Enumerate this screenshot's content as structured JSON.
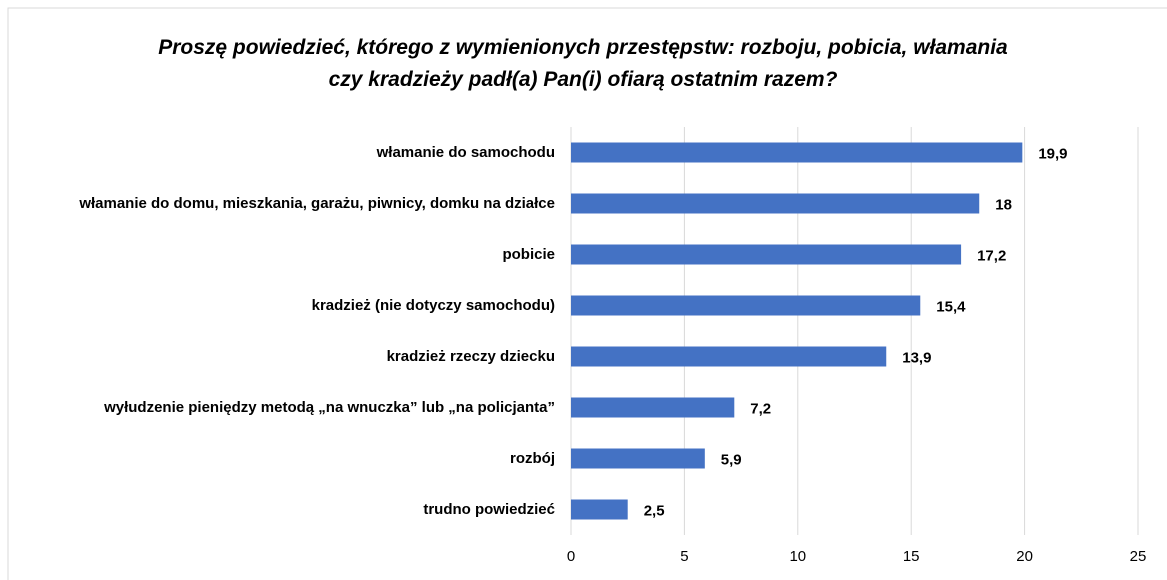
{
  "chart_data": {
    "type": "bar",
    "orientation": "horizontal",
    "title": "Proszę powiedzieć, którego z wymienionych przestępstw: rozboju, pobicia, włamania czy kradzieży padł(a) Pan(i) ofiarą ostatnim razem?",
    "categories": [
      "włamanie do samochodu",
      "włamanie do domu, mieszkania, garażu, piwnicy, domku na działce",
      "pobicie",
      "kradzież (nie dotyczy samochodu)",
      "kradzież rzeczy dziecku",
      "wyłudzenie pieniędzy metodą „na wnuczka” lub „na policjanta”",
      "rozbój",
      "trudno powiedzieć"
    ],
    "values": [
      19.9,
      18,
      17.2,
      15.4,
      13.9,
      7.2,
      5.9,
      2.5
    ],
    "value_labels": [
      "19,9",
      "18",
      "17,2",
      "15,4",
      "13,9",
      "7,2",
      "5,9",
      "2,5"
    ],
    "color": "#4472c4",
    "xlim": [
      0,
      25
    ],
    "xticks": [
      0,
      5,
      10,
      15,
      20,
      25
    ],
    "grid": true
  }
}
